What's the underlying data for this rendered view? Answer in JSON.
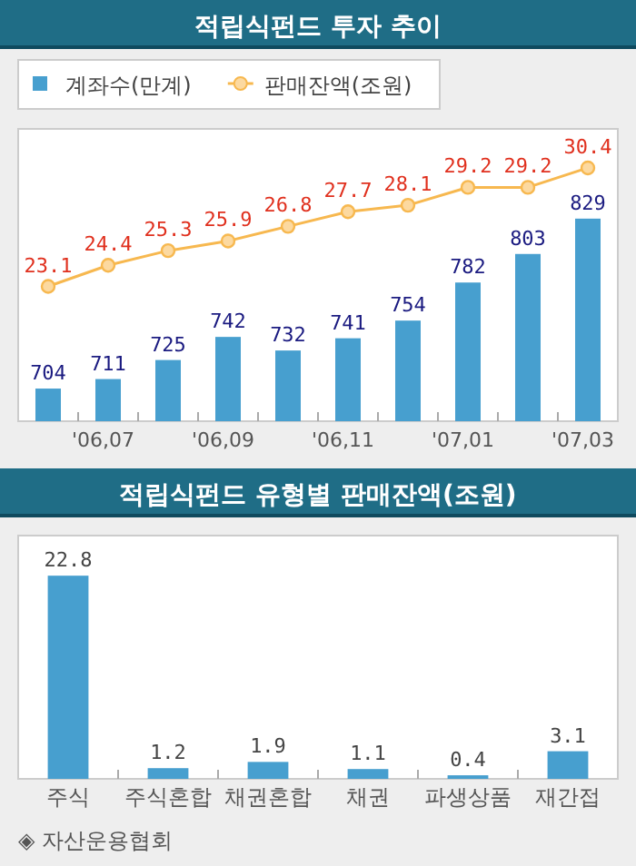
{
  "chart_data": [
    {
      "type": "bar",
      "title": "적립식펀드 투자 추이",
      "categories": [
        null,
        "'06,07",
        null,
        "'06,09",
        null,
        "'06,11",
        null,
        "'07,01",
        null,
        "'07,03"
      ],
      "series": [
        {
          "name": "계좌수(만계)",
          "type": "bar",
          "axis": "y",
          "color": "#479fcf",
          "values": [
            704,
            711,
            725,
            742,
            732,
            741,
            754,
            782,
            803,
            829
          ]
        },
        {
          "name": "판매잔액(조원)",
          "type": "line",
          "axis": "y2",
          "color": "#f7b84f",
          "marker": "circle",
          "values": [
            23.1,
            24.4,
            25.3,
            25.9,
            26.8,
            27.7,
            28.1,
            29.2,
            29.2,
            30.4
          ]
        }
      ],
      "ylim": [
        680,
        895
      ],
      "y2lim": [
        14.8,
        32.8
      ],
      "tick_labels": "x",
      "data_labels": true,
      "legend": "top left"
    },
    {
      "type": "bar",
      "title": "적립식펀드 유형별 판매잔액(조원)",
      "categories": [
        "주식",
        "주식혼합",
        "채권혼합",
        "채권",
        "파생상품",
        "재간접"
      ],
      "values": [
        22.8,
        1.2,
        1.9,
        1.1,
        0.4,
        3.1
      ],
      "color": "#479fcf",
      "ylim": [
        0,
        27.3
      ],
      "tick_labels": "x",
      "data_labels": true,
      "annotations": [
        "◈ 자산운용협회"
      ]
    }
  ]
}
